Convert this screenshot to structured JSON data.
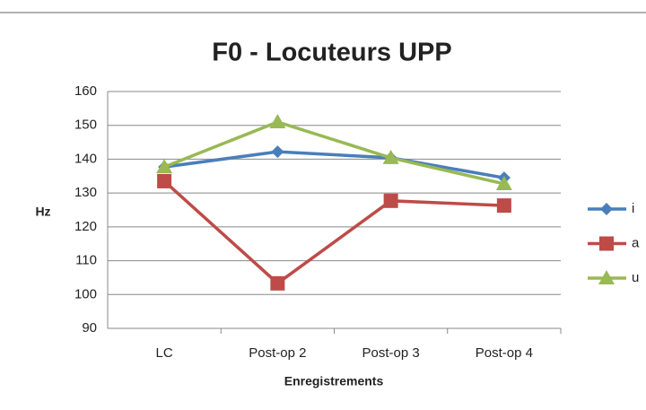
{
  "chart_data": {
    "type": "line",
    "title": "F0 - Locuteurs UPP",
    "x_label": "Enregistrements",
    "y_label": "Hz",
    "categories": [
      "LC",
      "Post-op 2",
      "Post-op 3",
      "Post-op 4"
    ],
    "series": [
      {
        "name": "i",
        "color": "#4a7ebb",
        "marker": "diamond",
        "values": [
          137.7,
          142.2,
          140.4,
          134.5
        ]
      },
      {
        "name": "a",
        "color": "#be4b48",
        "marker": "square",
        "values": [
          133.5,
          103.3,
          127.7,
          126.3
        ]
      },
      {
        "name": "u",
        "color": "#98b954",
        "marker": "triangle",
        "values": [
          137.7,
          151,
          140.4,
          132.7
        ]
      }
    ],
    "ylim": [
      90,
      160
    ],
    "yticks": [
      90,
      100,
      110,
      120,
      130,
      140,
      150,
      160
    ],
    "grid": true,
    "legend": "right"
  }
}
